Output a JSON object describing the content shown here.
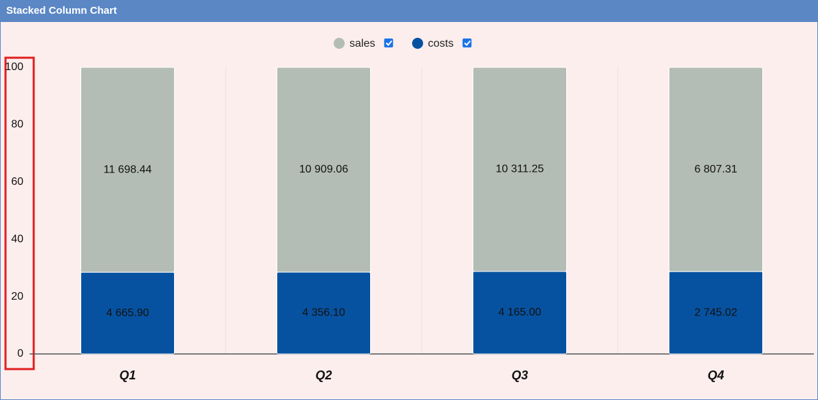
{
  "chart_data": {
    "type": "bar",
    "stacking": "percent",
    "title": "Stacked Column Chart",
    "categories": [
      "Q1",
      "Q2",
      "Q3",
      "Q4"
    ],
    "series": [
      {
        "name": "sales",
        "color": "#b3bdb5",
        "values": [
          11698.44,
          10909.06,
          10311.25,
          6807.31
        ],
        "value_labels": [
          "11 698.44",
          "10 909.06",
          "10 311.25",
          "6 807.31"
        ]
      },
      {
        "name": "costs",
        "color": "#0752a0",
        "values": [
          4665.9,
          4356.1,
          4165.0,
          2745.02
        ],
        "value_labels": [
          "4 665.90",
          "4 356.10",
          "4 165.00",
          "2 745.02"
        ]
      }
    ],
    "ylim": [
      0,
      100
    ],
    "yticks": [
      0,
      20,
      40,
      60,
      80,
      100
    ],
    "grid": "x"
  }
}
